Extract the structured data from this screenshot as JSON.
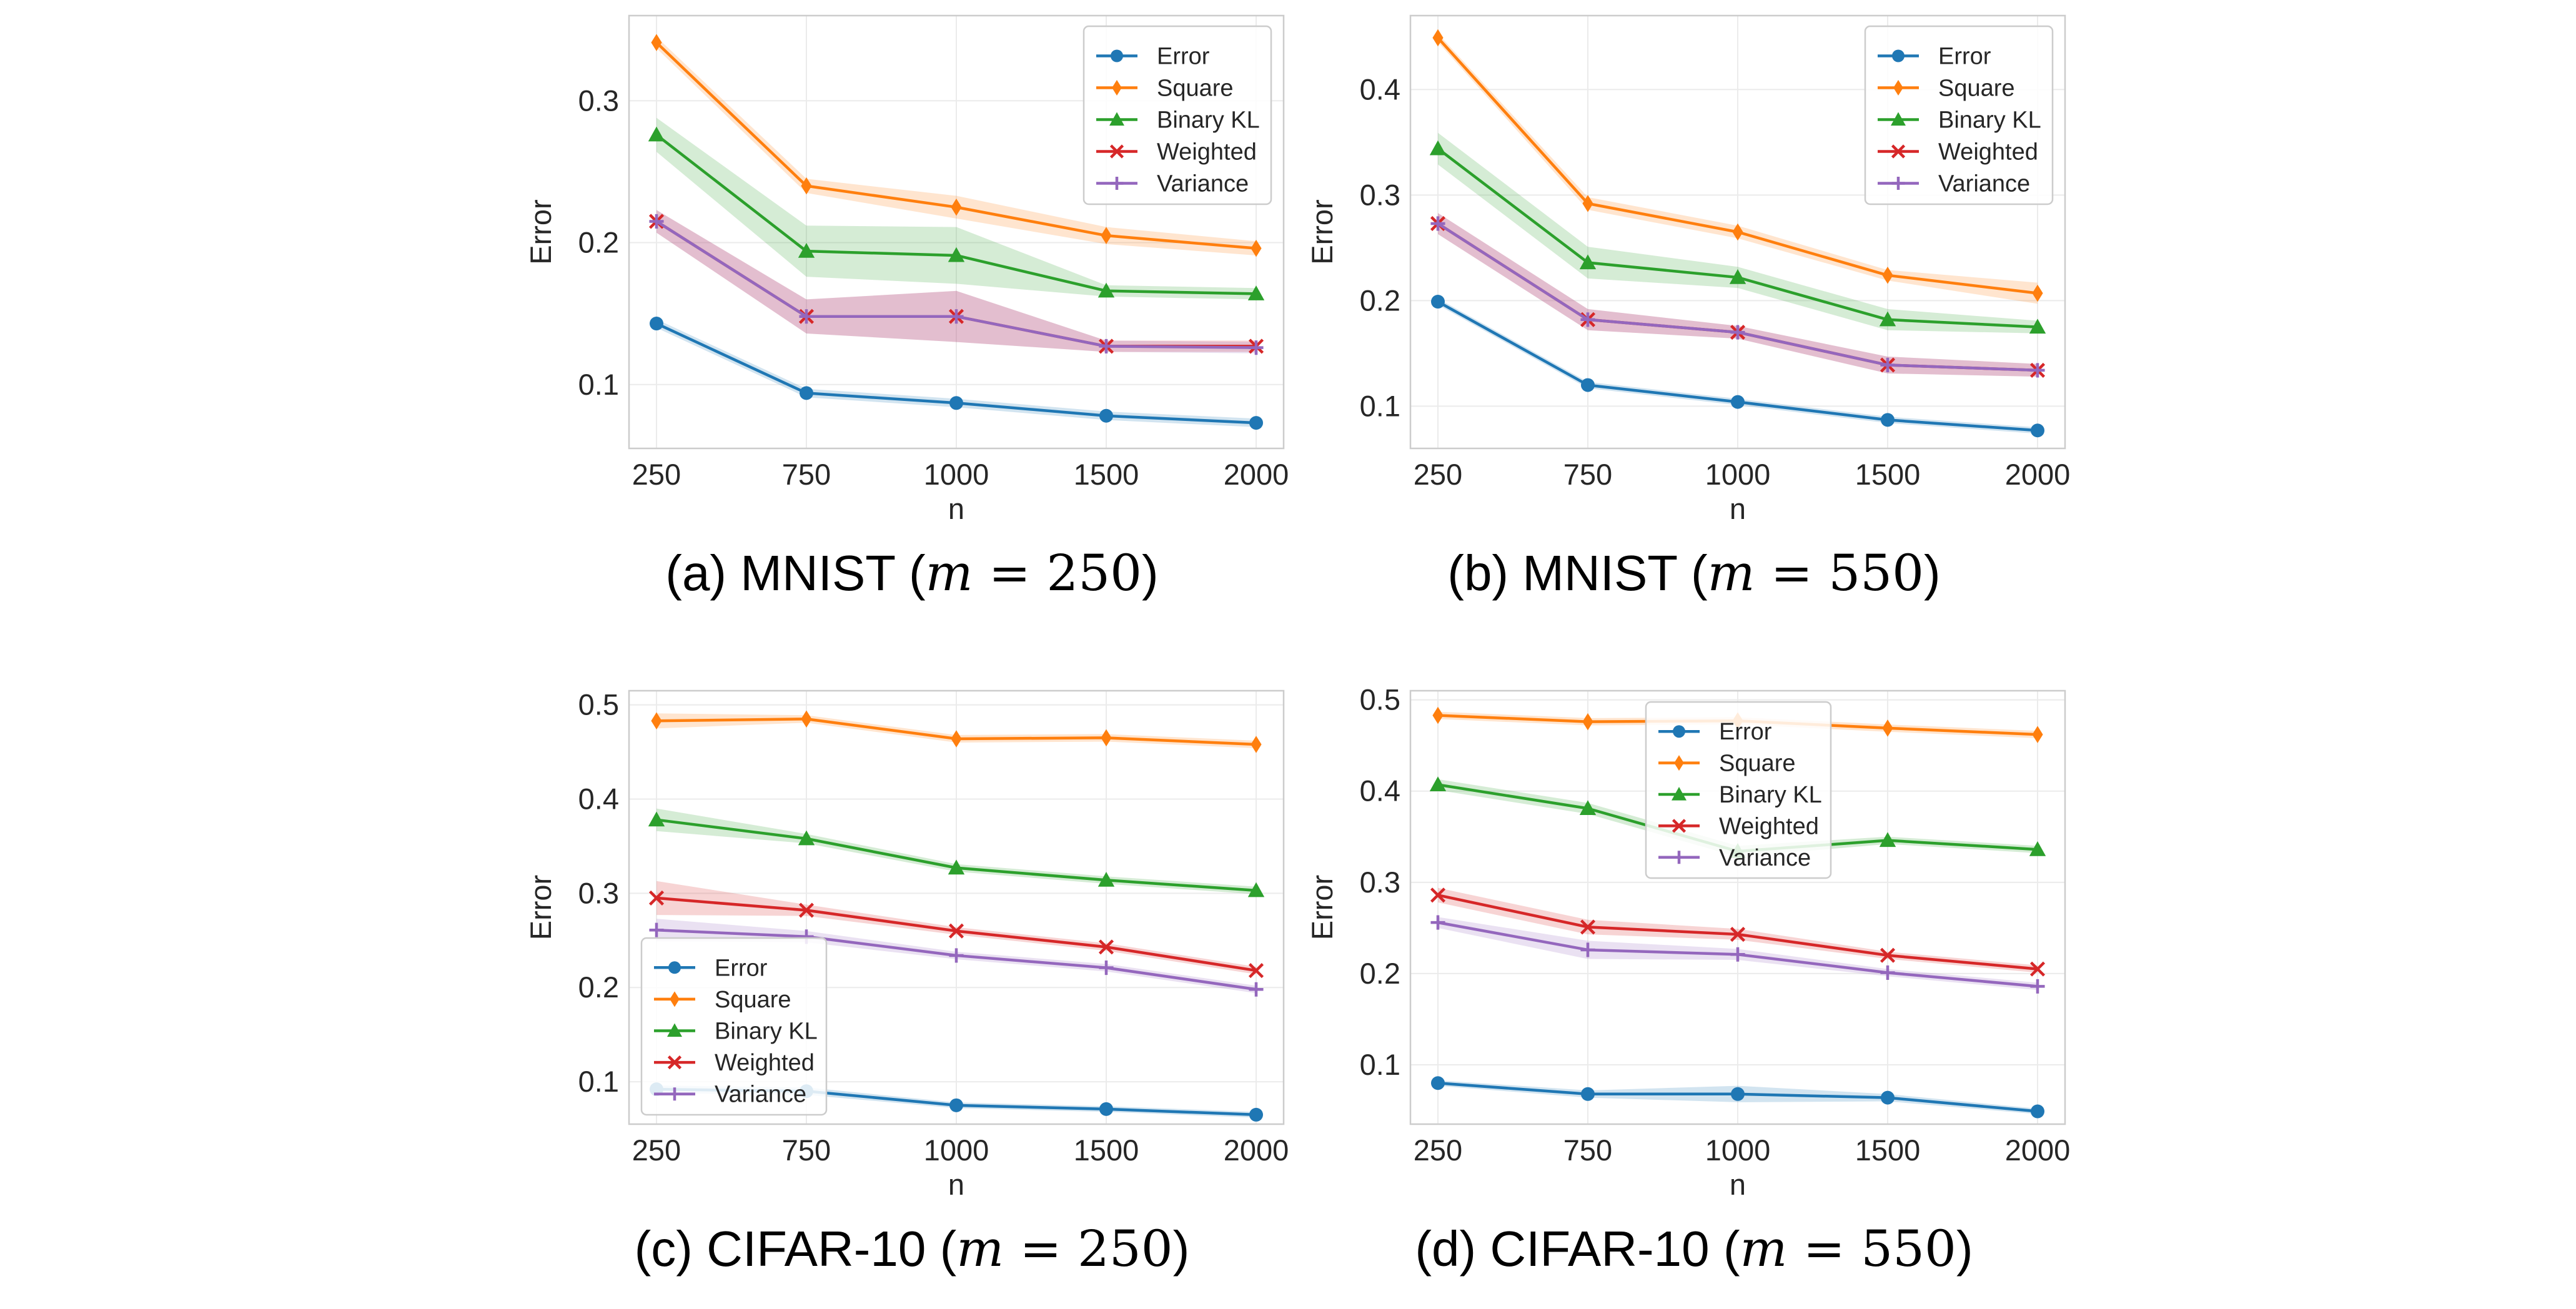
{
  "chart_data": [
    {
      "type": "line",
      "caption": {
        "prefix": "(a) MNIST (",
        "var": "m",
        "eq": " = 250",
        "suffix": ")"
      },
      "xlabel": "n",
      "ylabel": "Error",
      "categories": [
        "250",
        "750",
        "1000",
        "1500",
        "2000"
      ],
      "ylim": [
        0.055,
        0.36
      ],
      "yticks": [
        0.1,
        0.2,
        0.3
      ],
      "grid": true,
      "legend_position": "top-right",
      "series": [
        {
          "name": "Error",
          "color": "#1f77b4",
          "marker": "circle",
          "values": [
            0.143,
            0.094,
            0.087,
            0.078,
            0.073
          ],
          "band": [
            0.003,
            0.003,
            0.003,
            0.003,
            0.003
          ]
        },
        {
          "name": "Square",
          "color": "#ff7f0e",
          "marker": "diamond",
          "values": [
            0.341,
            0.24,
            0.225,
            0.205,
            0.196
          ],
          "band": [
            0.004,
            0.005,
            0.008,
            0.006,
            0.005
          ]
        },
        {
          "name": "Binary KL",
          "color": "#2ca02c",
          "marker": "triangle",
          "values": [
            0.276,
            0.194,
            0.191,
            0.166,
            0.164
          ],
          "band": [
            0.012,
            0.018,
            0.02,
            0.004,
            0.004
          ]
        },
        {
          "name": "Weighted",
          "color": "#d62728",
          "marker": "x",
          "values": [
            0.215,
            0.148,
            0.148,
            0.127,
            0.127
          ],
          "band": [
            0.008,
            0.012,
            0.018,
            0.004,
            0.004
          ]
        },
        {
          "name": "Variance",
          "color": "#9467bd",
          "marker": "plus",
          "values": [
            0.215,
            0.148,
            0.148,
            0.127,
            0.126
          ],
          "band": [
            0.008,
            0.012,
            0.018,
            0.004,
            0.004
          ]
        }
      ]
    },
    {
      "type": "line",
      "caption": {
        "prefix": "(b) MNIST (",
        "var": "m",
        "eq": " = 550",
        "suffix": ")"
      },
      "xlabel": "n",
      "ylabel": "Error",
      "categories": [
        "250",
        "750",
        "1000",
        "1500",
        "2000"
      ],
      "ylim": [
        0.06,
        0.47
      ],
      "yticks": [
        0.1,
        0.2,
        0.3,
        0.4
      ],
      "grid": true,
      "legend_position": "top-right",
      "series": [
        {
          "name": "Error",
          "color": "#1f77b4",
          "marker": "circle",
          "values": [
            0.199,
            0.12,
            0.104,
            0.087,
            0.077
          ],
          "band": [
            0.003,
            0.003,
            0.003,
            0.003,
            0.003
          ]
        },
        {
          "name": "Square",
          "color": "#ff7f0e",
          "marker": "diamond",
          "values": [
            0.449,
            0.292,
            0.265,
            0.224,
            0.207
          ],
          "band": [
            0.004,
            0.006,
            0.006,
            0.005,
            0.01
          ]
        },
        {
          "name": "Binary KL",
          "color": "#2ca02c",
          "marker": "triangle",
          "values": [
            0.344,
            0.236,
            0.222,
            0.182,
            0.175
          ],
          "band": [
            0.015,
            0.015,
            0.01,
            0.01,
            0.006
          ]
        },
        {
          "name": "Weighted",
          "color": "#d62728",
          "marker": "x",
          "values": [
            0.273,
            0.182,
            0.17,
            0.139,
            0.134
          ],
          "band": [
            0.01,
            0.01,
            0.006,
            0.008,
            0.006
          ]
        },
        {
          "name": "Variance",
          "color": "#9467bd",
          "marker": "plus",
          "values": [
            0.273,
            0.182,
            0.17,
            0.139,
            0.134
          ],
          "band": [
            0.01,
            0.01,
            0.006,
            0.008,
            0.006
          ]
        }
      ]
    },
    {
      "type": "line",
      "caption": {
        "prefix": "(c) CIFAR-10 (",
        "var": "m",
        "eq": " = 250",
        "suffix": ")"
      },
      "xlabel": "n",
      "ylabel": "Error",
      "categories": [
        "250",
        "750",
        "1000",
        "1500",
        "2000"
      ],
      "ylim": [
        0.055,
        0.515
      ],
      "yticks": [
        0.1,
        0.2,
        0.3,
        0.4,
        0.5
      ],
      "grid": true,
      "legend_position": "lower-left",
      "series": [
        {
          "name": "Error",
          "color": "#1f77b4",
          "marker": "circle",
          "values": [
            0.092,
            0.09,
            0.075,
            0.071,
            0.065
          ],
          "band": [
            0.004,
            0.004,
            0.003,
            0.003,
            0.003
          ]
        },
        {
          "name": "Square",
          "color": "#ff7f0e",
          "marker": "diamond",
          "values": [
            0.483,
            0.485,
            0.464,
            0.465,
            0.458
          ],
          "band": [
            0.008,
            0.004,
            0.004,
            0.004,
            0.004
          ]
        },
        {
          "name": "Binary KL",
          "color": "#2ca02c",
          "marker": "triangle",
          "values": [
            0.378,
            0.358,
            0.327,
            0.314,
            0.303
          ],
          "band": [
            0.012,
            0.005,
            0.004,
            0.004,
            0.004
          ]
        },
        {
          "name": "Weighted",
          "color": "#d62728",
          "marker": "x",
          "values": [
            0.295,
            0.282,
            0.26,
            0.243,
            0.218
          ],
          "band": [
            0.018,
            0.006,
            0.004,
            0.004,
            0.004
          ]
        },
        {
          "name": "Variance",
          "color": "#9467bd",
          "marker": "plus",
          "values": [
            0.261,
            0.254,
            0.234,
            0.221,
            0.198
          ],
          "band": [
            0.012,
            0.006,
            0.004,
            0.004,
            0.004
          ]
        }
      ]
    },
    {
      "type": "line",
      "caption": {
        "prefix": "(d) CIFAR-10 (",
        "var": "m",
        "eq": " = 550",
        "suffix": ")"
      },
      "xlabel": "n",
      "ylabel": "Error",
      "categories": [
        "250",
        "750",
        "1000",
        "1500",
        "2000"
      ],
      "ylim": [
        0.035,
        0.51
      ],
      "yticks": [
        0.1,
        0.2,
        0.3,
        0.4,
        0.5
      ],
      "grid": true,
      "legend_position": "top-center",
      "series": [
        {
          "name": "Error",
          "color": "#1f77b4",
          "marker": "circle",
          "values": [
            0.08,
            0.068,
            0.068,
            0.064,
            0.049
          ],
          "band": [
            0.003,
            0.004,
            0.009,
            0.004,
            0.003
          ]
        },
        {
          "name": "Square",
          "color": "#ff7f0e",
          "marker": "diamond",
          "values": [
            0.483,
            0.476,
            0.477,
            0.469,
            0.462
          ],
          "band": [
            0.004,
            0.004,
            0.004,
            0.004,
            0.004
          ]
        },
        {
          "name": "Binary KL",
          "color": "#2ca02c",
          "marker": "triangle",
          "values": [
            0.407,
            0.381,
            0.334,
            0.346,
            0.336
          ],
          "band": [
            0.006,
            0.006,
            0.006,
            0.004,
            0.004
          ]
        },
        {
          "name": "Weighted",
          "color": "#d62728",
          "marker": "x",
          "values": [
            0.286,
            0.251,
            0.243,
            0.22,
            0.205
          ],
          "band": [
            0.008,
            0.008,
            0.006,
            0.004,
            0.004
          ]
        },
        {
          "name": "Variance",
          "color": "#9467bd",
          "marker": "plus",
          "values": [
            0.256,
            0.226,
            0.221,
            0.201,
            0.186
          ],
          "band": [
            0.006,
            0.01,
            0.006,
            0.004,
            0.004
          ]
        }
      ]
    }
  ]
}
